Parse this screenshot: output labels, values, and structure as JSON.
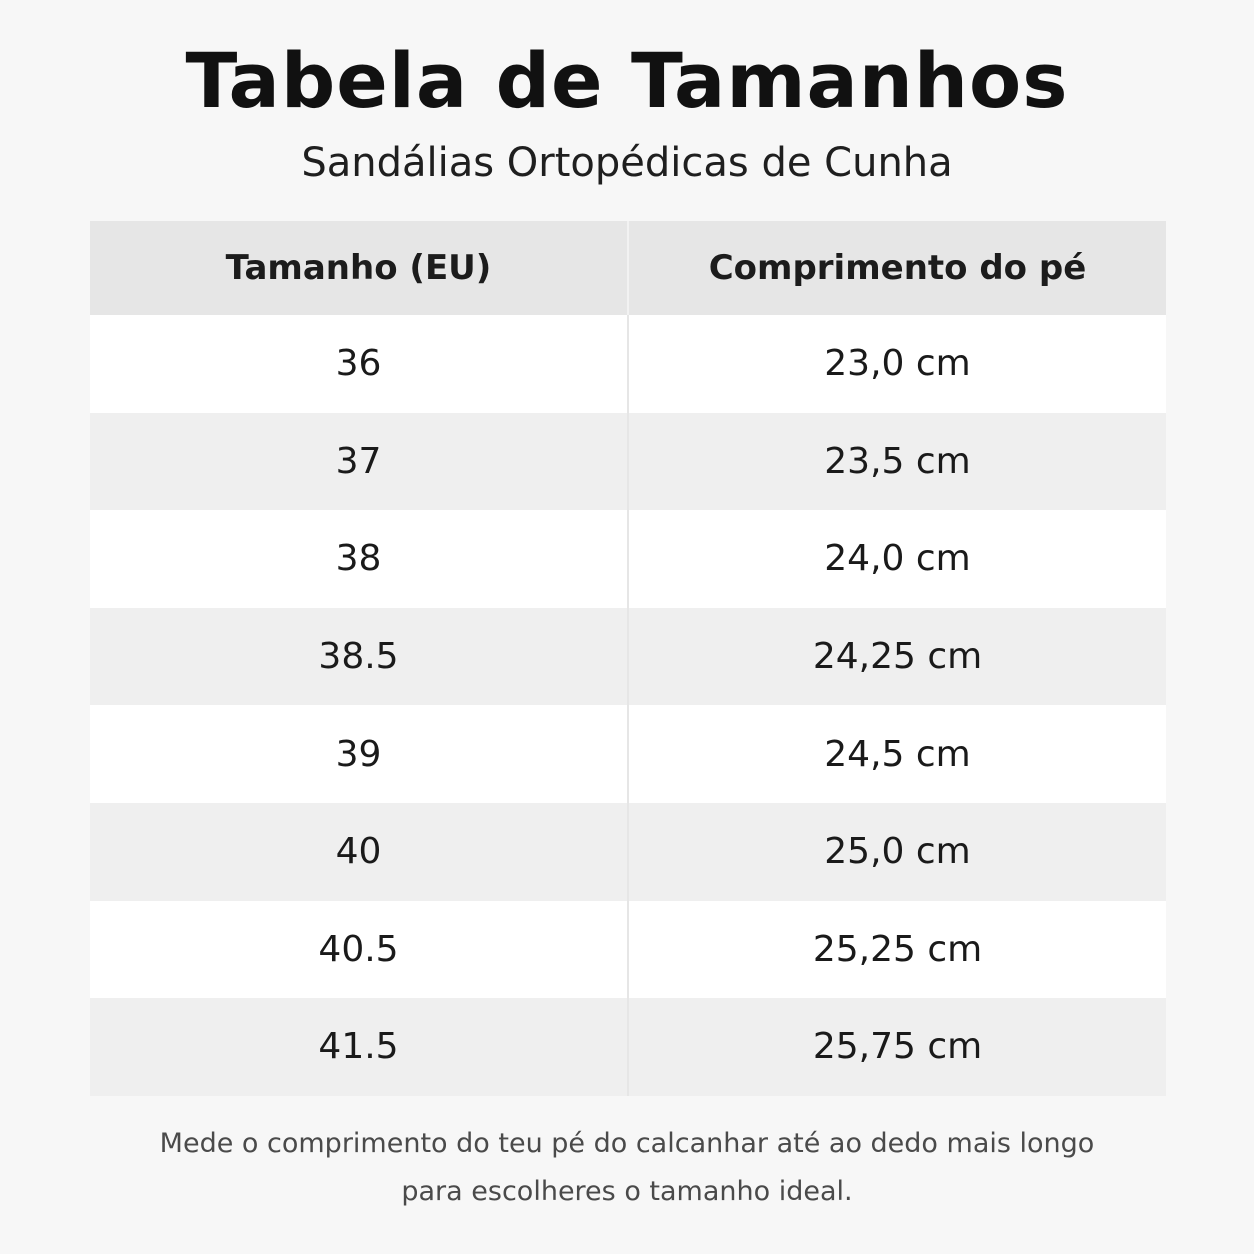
{
  "title": "Tabela de Tamanhos",
  "subtitle": "Sandálias Ortopédicas de Cunha",
  "table": {
    "headers": [
      "Tamanho (EU)",
      "Comprimento do pé"
    ],
    "rows": [
      [
        "36",
        "23,0 cm"
      ],
      [
        "37",
        "23,5 cm"
      ],
      [
        "38",
        "24,0 cm"
      ],
      [
        "38.5",
        "24,25 cm"
      ],
      [
        "39",
        "24,5 cm"
      ],
      [
        "40",
        "25,0 cm"
      ],
      [
        "40.5",
        "25,25 cm"
      ],
      [
        "41.5",
        "25,75 cm"
      ]
    ]
  },
  "footnote": {
    "line1": "Mede o comprimento do teu pé do calcanhar até ao dedo mais longo",
    "line2": "para escolheres o tamanho ideal."
  },
  "colors": {
    "background": "#f7f7f7",
    "header_bg": "#e6e6e6",
    "row_odd": "#ffffff",
    "row_even": "#efefef"
  }
}
